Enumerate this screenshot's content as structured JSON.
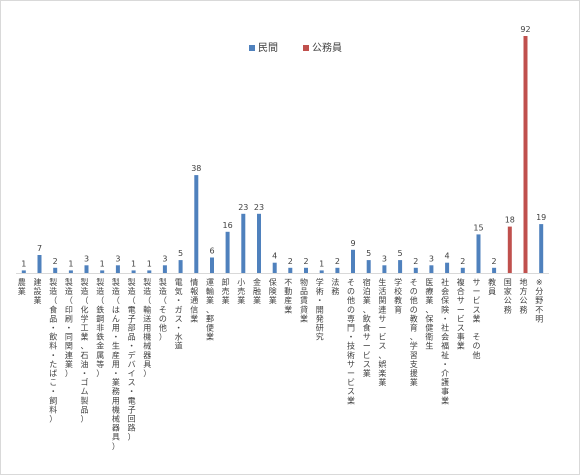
{
  "chart_data": {
    "type": "bar",
    "legend_placement": "top-center",
    "series": [
      {
        "name": "民間",
        "color": "#4f81bd"
      },
      {
        "name": "公務員",
        "color": "#c0504d"
      }
    ],
    "categories": [
      {
        "label": "農業",
        "value": 1,
        "series": 0
      },
      {
        "label": "建設業",
        "value": 7,
        "series": 0
      },
      {
        "label": "製造（食品・飲料・たばこ・飼料）",
        "value": 2,
        "series": 0
      },
      {
        "label": "製造（印刷・同関連業）",
        "value": 1,
        "series": 0
      },
      {
        "label": "製造（化学工業、石油・ゴム製品）",
        "value": 3,
        "series": 0
      },
      {
        "label": "製造（鉄鋼非鉄金属等）",
        "value": 1,
        "series": 0
      },
      {
        "label": "製造（はん用・生産用・業務用機械器具）",
        "value": 3,
        "series": 0
      },
      {
        "label": "製造（電子部品・デバイス・電子回路）",
        "value": 1,
        "series": 0
      },
      {
        "label": "製造（輸送用機械器具）",
        "value": 1,
        "series": 0
      },
      {
        "label": "製造（その他）",
        "value": 3,
        "series": 0
      },
      {
        "label": "電気・ガス・水道",
        "value": 5,
        "series": 0
      },
      {
        "label": "情報通信業",
        "value": 38,
        "series": 0
      },
      {
        "label": "運輸業、郵便業",
        "value": 6,
        "series": 0
      },
      {
        "label": "卸売業",
        "value": 16,
        "series": 0
      },
      {
        "label": "小売業",
        "value": 23,
        "series": 0
      },
      {
        "label": "金融業",
        "value": 23,
        "series": 0
      },
      {
        "label": "保険業",
        "value": 4,
        "series": 0
      },
      {
        "label": "不動産業",
        "value": 2,
        "series": 0
      },
      {
        "label": "物品賃貸業",
        "value": 2,
        "series": 0
      },
      {
        "label": "学術・開発研究",
        "value": 1,
        "series": 0
      },
      {
        "label": "法務",
        "value": 2,
        "series": 0
      },
      {
        "label": "その他の専門・技術サービス業",
        "value": 9,
        "series": 0
      },
      {
        "label": "宿泊業、飲食サービス業",
        "value": 5,
        "series": 0
      },
      {
        "label": "生活関連サービス、娯楽業",
        "value": 3,
        "series": 0
      },
      {
        "label": "学校教育",
        "value": 5,
        "series": 0
      },
      {
        "label": "その他の教育、学習支援業",
        "value": 2,
        "series": 0
      },
      {
        "label": "医療業、保健衛生",
        "value": 3,
        "series": 0
      },
      {
        "label": "社会保険・社会福祉・介護事業",
        "value": 4,
        "series": 0
      },
      {
        "label": "複合サービス事業",
        "value": 2,
        "series": 0
      },
      {
        "label": "サービス業 その他",
        "value": 15,
        "series": 0
      },
      {
        "label": "教員",
        "value": 2,
        "series": 0
      },
      {
        "label": "国家公務",
        "value": 18,
        "series": 1
      },
      {
        "label": "地方公務",
        "value": 92,
        "series": 1
      },
      {
        "label": "※分野不明",
        "value": 19,
        "series": 0
      }
    ],
    "ylim": [
      0,
      92
    ],
    "grid": false
  }
}
